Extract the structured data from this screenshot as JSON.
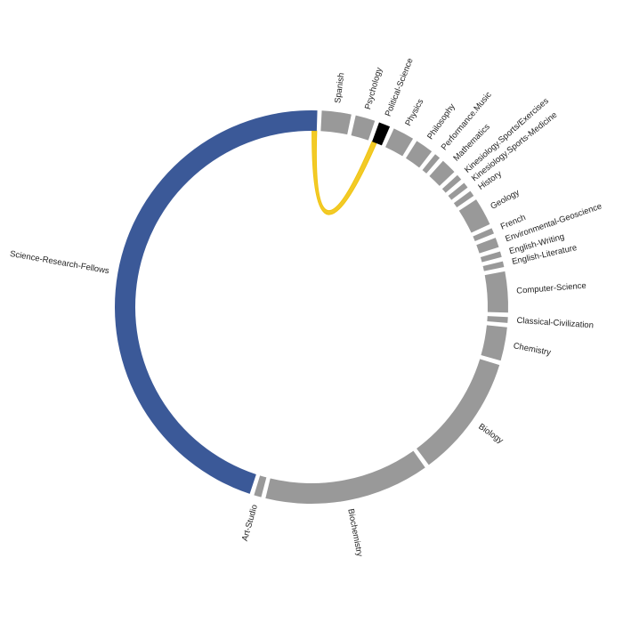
{
  "chart_data": {
    "type": "chord",
    "highlight_color": "#3b5998",
    "base_color": "#999999",
    "selected_color": "#000000",
    "link_color": "#f1c40f",
    "segments": [
      {
        "label": "Spanish",
        "value": 3.6
      },
      {
        "label": "Psychology",
        "value": 2.4
      },
      {
        "label": "Political-Science",
        "value": 1.4,
        "selected": true
      },
      {
        "label": "Physics",
        "value": 2.6
      },
      {
        "label": "Philosophy",
        "value": 2.2
      },
      {
        "label": "Performance.Music",
        "value": 0.7
      },
      {
        "label": "Mathematics",
        "value": 1.9
      },
      {
        "label": "Kinesiology.Sports/Exercises",
        "value": 0.7
      },
      {
        "label": "Kinesiology.Sports-Medicine",
        "value": 0.7
      },
      {
        "label": "History",
        "value": 0.7
      },
      {
        "label": "Geology",
        "value": 3.4
      },
      {
        "label": "French",
        "value": 0.7
      },
      {
        "label": "Environmental-Geoscience",
        "value": 1.2
      },
      {
        "label": "English-Writing",
        "value": 0.7
      },
      {
        "label": "English-Literature",
        "value": 0.7
      },
      {
        "label": "Computer-Science",
        "value": 5.0
      },
      {
        "label": "Classical-Civilization",
        "value": 0.7
      },
      {
        "label": "Chemistry",
        "value": 4.1
      },
      {
        "label": "Biology",
        "value": 15.0
      },
      {
        "label": "Biochemistry",
        "value": 20.2
      },
      {
        "label": "Art-Studio",
        "value": 0.9
      },
      {
        "label": "Science-Research-Fellows",
        "value": 67.6,
        "highlighted": true
      }
    ],
    "links": [
      {
        "source": "Science-Research-Fellows",
        "target": "Political-Science"
      }
    ]
  }
}
